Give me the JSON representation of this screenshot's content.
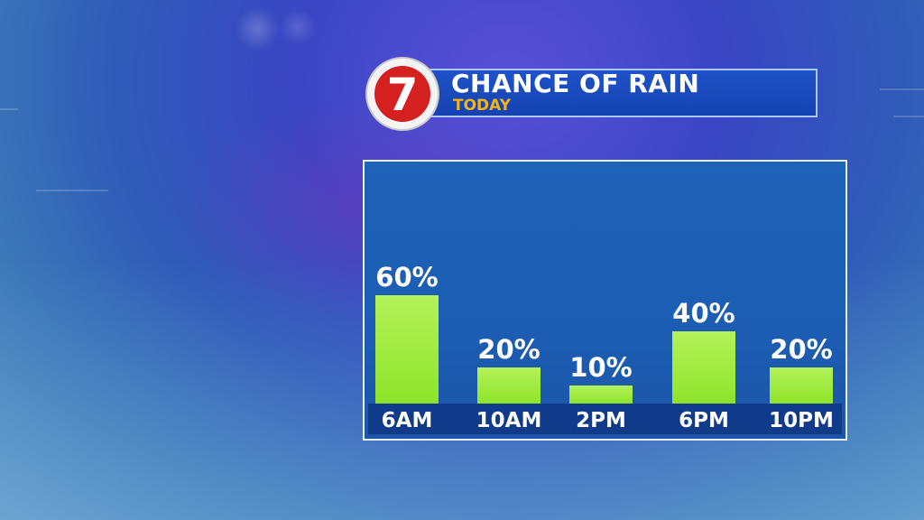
{
  "header": {
    "logo_number": "7",
    "title": "CHANCE OF RAIN",
    "subtitle": "TODAY"
  },
  "colors": {
    "bar_fill": "#8ee42a",
    "bar_highlight": "#b4f25a",
    "axis_band": "#103a8a",
    "panel": "#1d62b7",
    "logo_red": "#d4201f",
    "subtitle": "#f2b21b"
  },
  "chart_data": {
    "type": "bar",
    "title": "CHANCE OF RAIN",
    "subtitle": "TODAY",
    "categories": [
      "6AM",
      "10AM",
      "2PM",
      "6PM",
      "10PM"
    ],
    "values": [
      60,
      20,
      10,
      40,
      20
    ],
    "data_labels": [
      "60%",
      "20%",
      "10%",
      "40%",
      "20%"
    ],
    "ylim": [
      0,
      100
    ],
    "grid": false,
    "legend": "none"
  }
}
